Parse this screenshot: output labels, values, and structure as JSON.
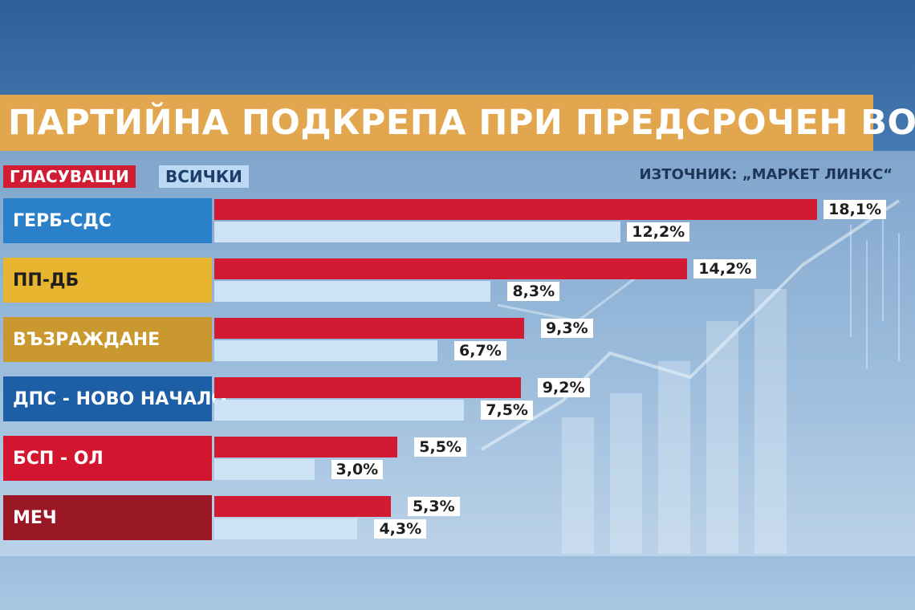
{
  "colors": {
    "voters": "#d21a32",
    "all": "#cfe3f6",
    "title_bg": "#e2a74e"
  },
  "title": "ПАРТИЙНА ПОДКРЕПА ПРИ ПРЕДСРОЧЕН ВОТ",
  "legend": {
    "voters": "ГЛАСУВАЩИ",
    "all": "ВСИЧКИ"
  },
  "source": "ИЗТОЧНИК: „МАРКЕТ ЛИНКС“",
  "chart_data": {
    "type": "bar",
    "orientation": "horizontal",
    "title": "ПАРТИЙНА ПОДКРЕПА ПРИ ПРЕДСРОЧЕН ВОТ",
    "categories": [
      "ГЕРБ-СДС",
      "ПП-ДБ",
      "ВЪЗРАЖДАНЕ",
      "ДПС - НОВО НАЧАЛО",
      "БСП - ОЛ",
      "МЕЧ"
    ],
    "category_colors": [
      "#2a80c9",
      "#e7b52f",
      "#c9992f",
      "#1d5fa6",
      "#d3152f",
      "#9a1826"
    ],
    "category_text_colors": [
      "#ffffff",
      "#1e1e1e",
      "#ffffff",
      "#ffffff",
      "#ffffff",
      "#ffffff"
    ],
    "series": [
      {
        "name": "ГЛАСУВАЩИ",
        "values": [
          18.1,
          14.2,
          9.3,
          9.2,
          5.5,
          5.3
        ],
        "labels": [
          "18,1%",
          "14,2%",
          "9,3%",
          "9,2%",
          "5,5%",
          "5,3%"
        ]
      },
      {
        "name": "ВСИЧКИ",
        "values": [
          12.2,
          8.3,
          6.7,
          7.5,
          3.0,
          4.3
        ],
        "labels": [
          "12,2%",
          "8,3%",
          "6,7%",
          "7,5%",
          "3,0%",
          "4,3%"
        ]
      }
    ],
    "grid": false,
    "legend_position": "top-left"
  }
}
